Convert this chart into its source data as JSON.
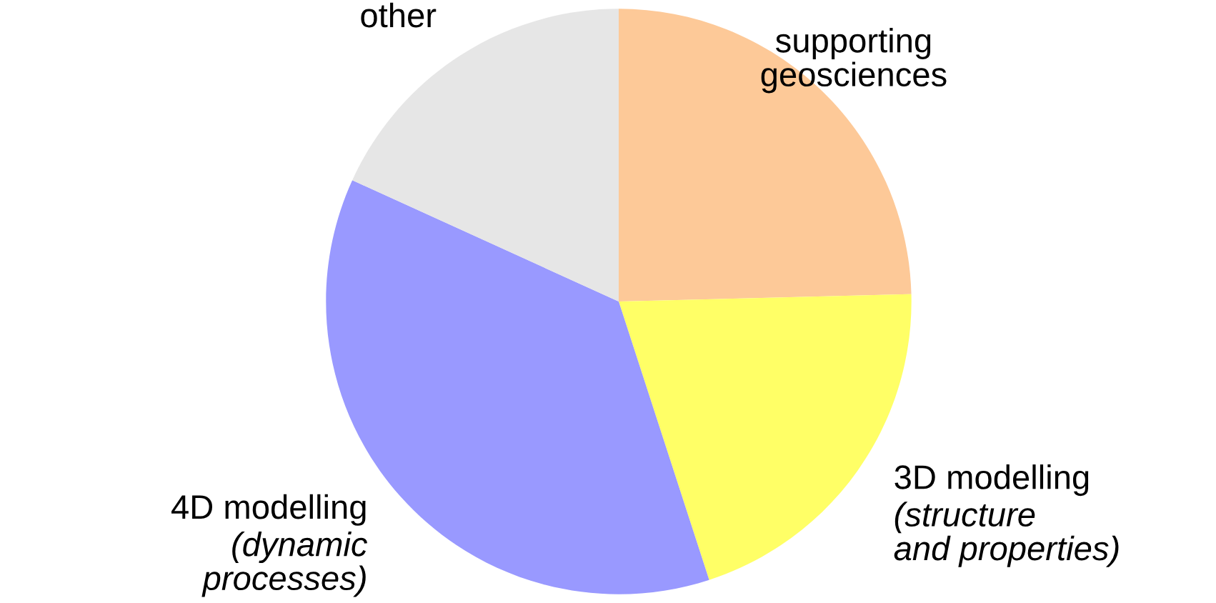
{
  "chart_data": {
    "type": "pie",
    "categories": [
      "supporting\ngeosciences",
      "3D modelling\n(structure\nand properties)",
      "4D modelling\n(dynamic\nprocesses)",
      "other"
    ],
    "values": [
      24.6,
      20.4,
      36.8,
      18.2
    ],
    "colors": [
      "#fdc998",
      "#ffff66",
      "#9999ff",
      "#e6e6e6"
    ],
    "legend": false
  }
}
